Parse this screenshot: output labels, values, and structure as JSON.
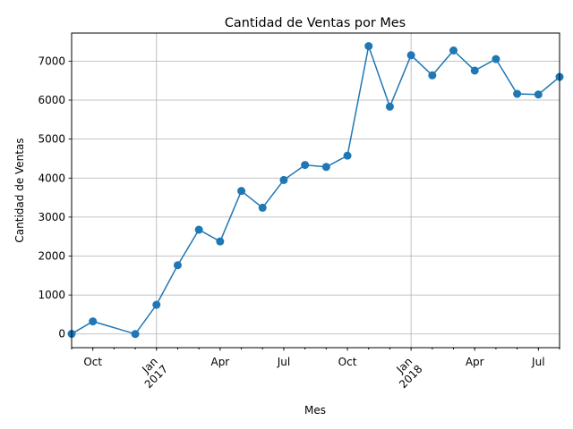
{
  "chart_data": {
    "type": "line",
    "title": "Cantidad de Ventas por Mes",
    "xlabel": "Mes",
    "ylabel": "Cantidad de Ventas",
    "x_start": "2016-09",
    "x_end": "2018-08",
    "ylim": [
      -350,
      7720
    ],
    "grid": true,
    "series_color": "#1f77b4",
    "series": [
      {
        "x": [
          "2016-09",
          "2016-10",
          "2016-12",
          "2017-01",
          "2017-02",
          "2017-03",
          "2017-04",
          "2017-05",
          "2017-06",
          "2017-07",
          "2017-08",
          "2017-09",
          "2017-10",
          "2017-11",
          "2017-12",
          "2018-01",
          "2018-02",
          "2018-03",
          "2018-04",
          "2018-05",
          "2018-06",
          "2018-07",
          "2018-08"
        ],
        "values": [
          4,
          324,
          1,
          750,
          1765,
          2676,
          2374,
          3670,
          3240,
          3951,
          4336,
          4286,
          4575,
          7385,
          5832,
          7152,
          6636,
          7273,
          6758,
          7053,
          6161,
          6144,
          6596
        ]
      }
    ],
    "y_ticks": [
      "0",
      "1000",
      "2000",
      "3000",
      "4000",
      "5000",
      "6000",
      "7000"
    ],
    "x_ticks": [
      {
        "x": "2016-10",
        "label": "Oct"
      },
      {
        "x": "2017-01",
        "label": "Jan",
        "year": "2017"
      },
      {
        "x": "2017-04",
        "label": "Apr"
      },
      {
        "x": "2017-07",
        "label": "Jul"
      },
      {
        "x": "2017-10",
        "label": "Oct"
      },
      {
        "x": "2018-01",
        "label": "Jan",
        "year": "2018"
      },
      {
        "x": "2018-04",
        "label": "Apr"
      },
      {
        "x": "2018-07",
        "label": "Jul"
      }
    ],
    "year_gridlines": [
      "2017-01",
      "2018-01"
    ]
  }
}
